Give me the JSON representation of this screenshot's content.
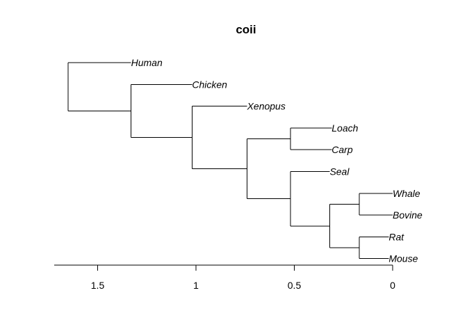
{
  "chart_data": {
    "type": "dendrogram",
    "title": "coii",
    "x_axis": {
      "reversed": true,
      "ticks": [
        1.5,
        1,
        0.5,
        0
      ],
      "tick_labels": [
        "1.5",
        "1",
        "0.5",
        "0"
      ],
      "range": [
        1.72,
        0
      ]
    },
    "leaves": [
      "Human",
      "Chicken",
      "Xenopus",
      "Loach",
      "Carp",
      "Seal",
      "Whale",
      "Bovine",
      "Rat",
      "Mouse"
    ],
    "tree": {
      "height": 1.65,
      "children": [
        {
          "leaf": "Human"
        },
        {
          "height": 1.33,
          "children": [
            {
              "leaf": "Chicken"
            },
            {
              "height": 1.02,
              "children": [
                {
                  "leaf": "Xenopus"
                },
                {
                  "height": 0.74,
                  "children": [
                    {
                      "height": 0.52,
                      "children": [
                        {
                          "leaf": "Loach"
                        },
                        {
                          "leaf": "Carp"
                        }
                      ]
                    },
                    {
                      "height": 0.52,
                      "children": [
                        {
                          "leaf": "Seal"
                        },
                        {
                          "height": 0.32,
                          "children": [
                            {
                              "height": 0.17,
                              "children": [
                                {
                                  "leaf": "Whale"
                                },
                                {
                                  "leaf": "Bovine"
                                }
                              ]
                            },
                            {
                              "height": 0.17,
                              "children": [
                                {
                                  "leaf": "Rat"
                                },
                                {
                                  "leaf": "Mouse"
                                }
                              ]
                            }
                          ]
                        }
                      ]
                    }
                  ]
                }
              ]
            }
          ]
        }
      ]
    },
    "leaf_heights": {
      "Human": 1.33,
      "Chicken": 1.02,
      "Xenopus": 0.74,
      "Loach": 0.31,
      "Carp": 0.31,
      "Seal": 0.32,
      "Whale": 0.0,
      "Bovine": 0.0,
      "Rat": 0.02,
      "Mouse": 0.02
    }
  }
}
